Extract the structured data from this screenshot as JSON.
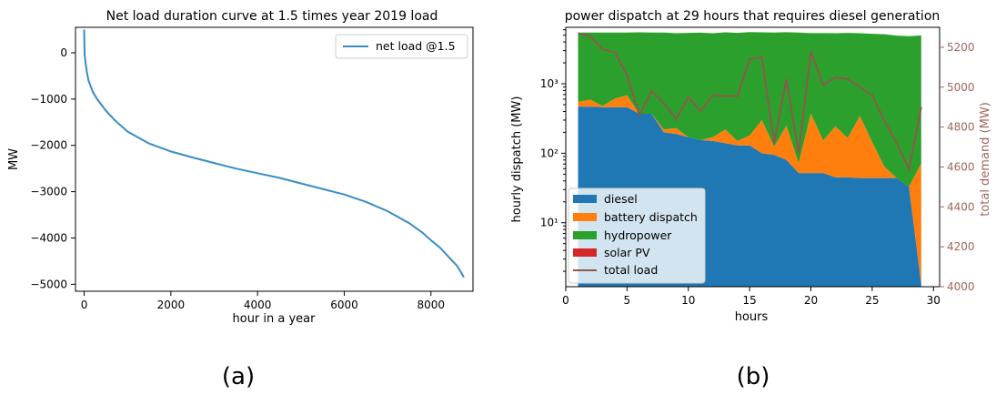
{
  "panel_labels": [
    "(a)",
    "(b)"
  ],
  "colors": {
    "net_load": "#3a8cc4",
    "diesel": "#1f77b4",
    "battery": "#ff7f0e",
    "hydro": "#2ca02c",
    "solar": "#d62728",
    "total_load": "#8c5a4a",
    "right_axis": "#a0665a"
  },
  "chart_data": [
    {
      "type": "line",
      "title": "Net load duration curve at 1.5 times year 2019 load",
      "xlabel": "hour in a year",
      "ylabel": "MW",
      "xlim": [
        -200,
        8970
      ],
      "ylim": [
        -5150,
        550
      ],
      "xticks": [
        0,
        2000,
        4000,
        6000,
        8000
      ],
      "xtick_labels": [
        "0",
        "2000",
        "4000",
        "6000",
        "8000"
      ],
      "yticks": [
        0,
        -1000,
        -2000,
        -3000,
        -4000,
        -5000
      ],
      "ytick_labels": [
        "0",
        "−1000",
        "−2000",
        "−3000",
        "−4000",
        "−5000"
      ],
      "legend": "upper right",
      "grid": false,
      "series": [
        {
          "name": "net load @1.5",
          "x": [
            0,
            10,
            30,
            60,
            100,
            200,
            300,
            500,
            700,
            1000,
            1500,
            2000,
            2500,
            3000,
            3500,
            4000,
            4500,
            5000,
            5500,
            6000,
            6500,
            7000,
            7500,
            7800,
            8000,
            8200,
            8400,
            8500,
            8600,
            8700,
            8760
          ],
          "y": [
            500,
            -50,
            -200,
            -400,
            -600,
            -850,
            -1000,
            -1250,
            -1450,
            -1700,
            -1960,
            -2130,
            -2260,
            -2380,
            -2500,
            -2600,
            -2700,
            -2820,
            -2940,
            -3060,
            -3220,
            -3420,
            -3680,
            -3880,
            -4050,
            -4200,
            -4400,
            -4500,
            -4600,
            -4750,
            -4850
          ]
        }
      ]
    },
    {
      "type": "area",
      "stacked": true,
      "title": "power dispatch at 29 hours that requires diesel generation",
      "xlabel": "hours",
      "ylabel": "hourly dispatch (MW)",
      "y2label": "total demand (MW)",
      "yscale": "log",
      "xlim": [
        0,
        30.5
      ],
      "ylim": [
        1.2,
        6500
      ],
      "y2lim": [
        4000,
        5300
      ],
      "xticks": [
        0,
        5,
        10,
        15,
        20,
        25,
        30
      ],
      "xtick_labels": [
        "0",
        "5",
        "10",
        "15",
        "20",
        "25",
        "30"
      ],
      "ytick_labels": [
        "10¹",
        "10²",
        "10³"
      ],
      "y2ticks": [
        4000,
        4200,
        4400,
        4600,
        4800,
        5000,
        5200
      ],
      "y2tick_labels": [
        "4000",
        "4200",
        "4400",
        "4600",
        "4800",
        "5000",
        "5200"
      ],
      "legend": "lower left",
      "grid": false,
      "x": [
        1,
        2,
        3,
        4,
        5,
        6,
        7,
        8,
        9,
        10,
        11,
        12,
        13,
        14,
        15,
        16,
        17,
        18,
        19,
        20,
        21,
        22,
        23,
        24,
        25,
        26,
        27,
        28,
        29
      ],
      "series": [
        {
          "name": "diesel",
          "values": [
            470,
            470,
            460,
            460,
            460,
            370,
            370,
            200,
            190,
            170,
            155,
            150,
            140,
            130,
            130,
            100,
            95,
            80,
            52,
            52,
            52,
            45,
            45,
            44,
            44,
            44,
            44,
            33,
            1.3
          ]
        },
        {
          "name": "battery dispatch",
          "values": [
            80,
            120,
            20,
            150,
            220,
            0,
            0,
            20,
            40,
            0,
            0,
            20,
            80,
            20,
            50,
            200,
            30,
            170,
            20,
            320,
            100,
            200,
            120,
            300,
            100,
            20,
            0,
            0,
            70
          ]
        },
        {
          "name": "hydropower",
          "values": [
            4900,
            4860,
            4970,
            4840,
            4770,
            5130,
            5080,
            5240,
            5120,
            5230,
            5290,
            5180,
            5280,
            5250,
            5370,
            5200,
            5330,
            5280,
            5380,
            4980,
            5200,
            5100,
            5250,
            5000,
            5100,
            5100,
            4900,
            4800,
            4900
          ]
        },
        {
          "name": "solar PV",
          "values": [
            0,
            0,
            0,
            0,
            0,
            0,
            0,
            0,
            0,
            0,
            0,
            0,
            0,
            0,
            0,
            0,
            0,
            0,
            0,
            0,
            0,
            0,
            0,
            0,
            0,
            0,
            0,
            0,
            0
          ]
        },
        {
          "name": "total load",
          "axis": "right",
          "values": [
            5270,
            5255,
            5190,
            5175,
            5060,
            4860,
            4980,
            4920,
            4840,
            4950,
            4880,
            4960,
            4955,
            4955,
            5140,
            5150,
            4720,
            5040,
            4670,
            5180,
            5010,
            5050,
            5040,
            5000,
            4960,
            4830,
            4720,
            4590,
            4900
          ]
        }
      ]
    }
  ]
}
